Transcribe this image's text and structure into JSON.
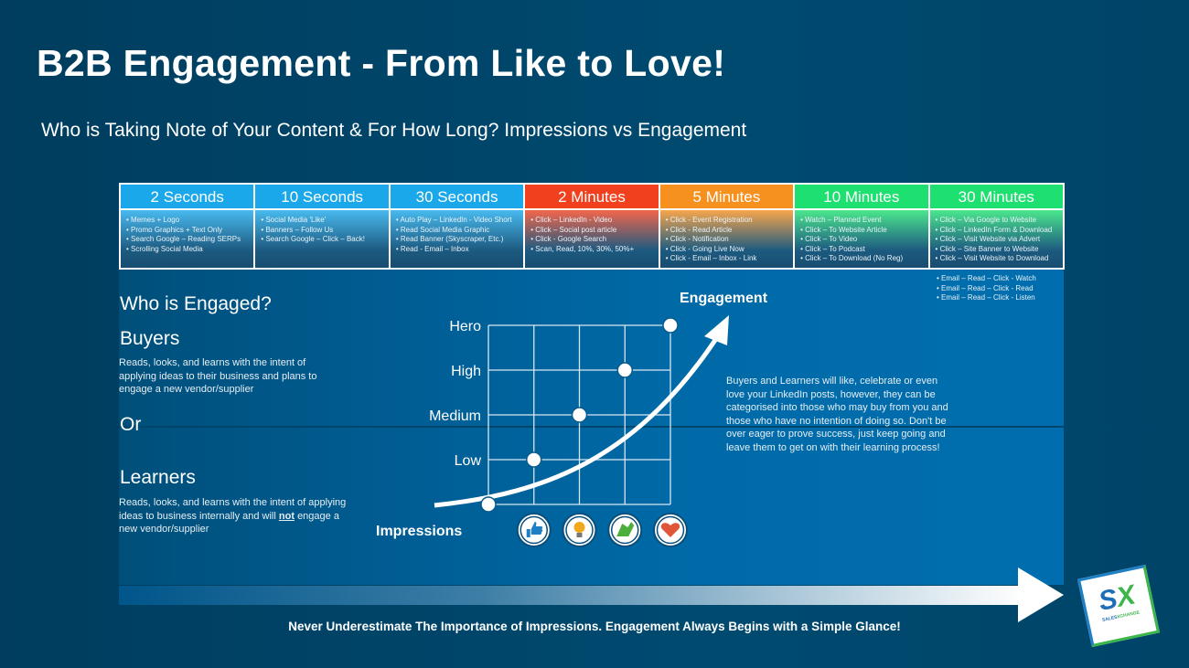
{
  "title": "B2B Engagement - From Like to Love!",
  "subtitle": "Who is Taking Note of Your Content & For How Long? Impressions vs Engagement",
  "columns": [
    {
      "label": "2 Seconds",
      "color": "#1aa8ea",
      "items": [
        "Memes + Logo",
        "Promo Graphics + Text Only",
        "Search Google – Reading SERPs",
        "Scrolling Social Media"
      ]
    },
    {
      "label": "10 Seconds",
      "color": "#1aa8ea",
      "items": [
        "Social Media 'Like'",
        "Banners – Follow Us",
        "Search Google – Click – Back!"
      ]
    },
    {
      "label": "30 Seconds",
      "color": "#1aa8ea",
      "items": [
        "Auto Play – LinkedIn - Video Short",
        "Read Social Media Graphic",
        "Read Banner (Skyscraper, Etc.)",
        "Read - Email – Inbox"
      ]
    },
    {
      "label": "2 Minutes",
      "color": "#f0401e",
      "items": [
        "Click – LinkedIn - Video",
        "Click – Social post article",
        "Click - Google Search",
        "Scan, Read, 10%, 30%, 50%+"
      ]
    },
    {
      "label": "5 Minutes",
      "color": "#f6901e",
      "items": [
        "Click - Event Registration",
        "Click - Read Article",
        "Click - Notification",
        "Click - Going Live Now",
        "Click - Email – Inbox - Link"
      ]
    },
    {
      "label": "10 Minutes",
      "color": "#1ee070",
      "items": [
        "Watch – Planned Event",
        "Click – To Website Article",
        "Click – To Video",
        "Click – To Podcast",
        "Click – To Download (No Reg)"
      ]
    },
    {
      "label": "30 Minutes",
      "color": "#1ee070",
      "items": [
        "Click – Via Google to Website",
        "Click – LinkedIn Form & Download",
        "Click – Visit Website via Advert",
        "Click – Site Banner to Website",
        "Click – Visit Website to Download"
      ]
    }
  ],
  "extra_items": [
    "Email – Read – Click - Watch",
    "Email – Read – Click - Read",
    "Email – Read – Click - Listen"
  ],
  "left": {
    "heading": "Who is Engaged?",
    "buyers_title": "Buyers",
    "buyers_text": "Reads, looks, and learns with the intent of applying ideas to their business and plans to engage a new vendor/supplier",
    "or": "Or",
    "learners_title": "Learners",
    "learners_text_1": "Reads, looks, and learns with the intent of applying ideas to business internally and will",
    "learners_not": "not",
    "learners_text_2": "engage a new vendor/supplier"
  },
  "diagram": {
    "y_label": "Engagement",
    "x_label": "Impressions",
    "levels": [
      "Hero",
      "High",
      "Medium",
      "Low"
    ],
    "icons": [
      "thumbs-up-icon",
      "lightbulb-icon",
      "clapping-hands-icon",
      "heart-icon"
    ]
  },
  "note": "Buyers and Learners will like, celebrate or even love your LinkedIn posts, however, they can be categorised into those who may buy from you and those who have no intention of doing so.  Don't be over eager to prove success, just keep going and leave them to get on with their learning process!",
  "footer": "Never Underestimate The Importance of Impressions. Engagement Always Begins with a Simple Glance!",
  "logo": {
    "text": "SX",
    "subtext": "SALES XCHANGE"
  }
}
